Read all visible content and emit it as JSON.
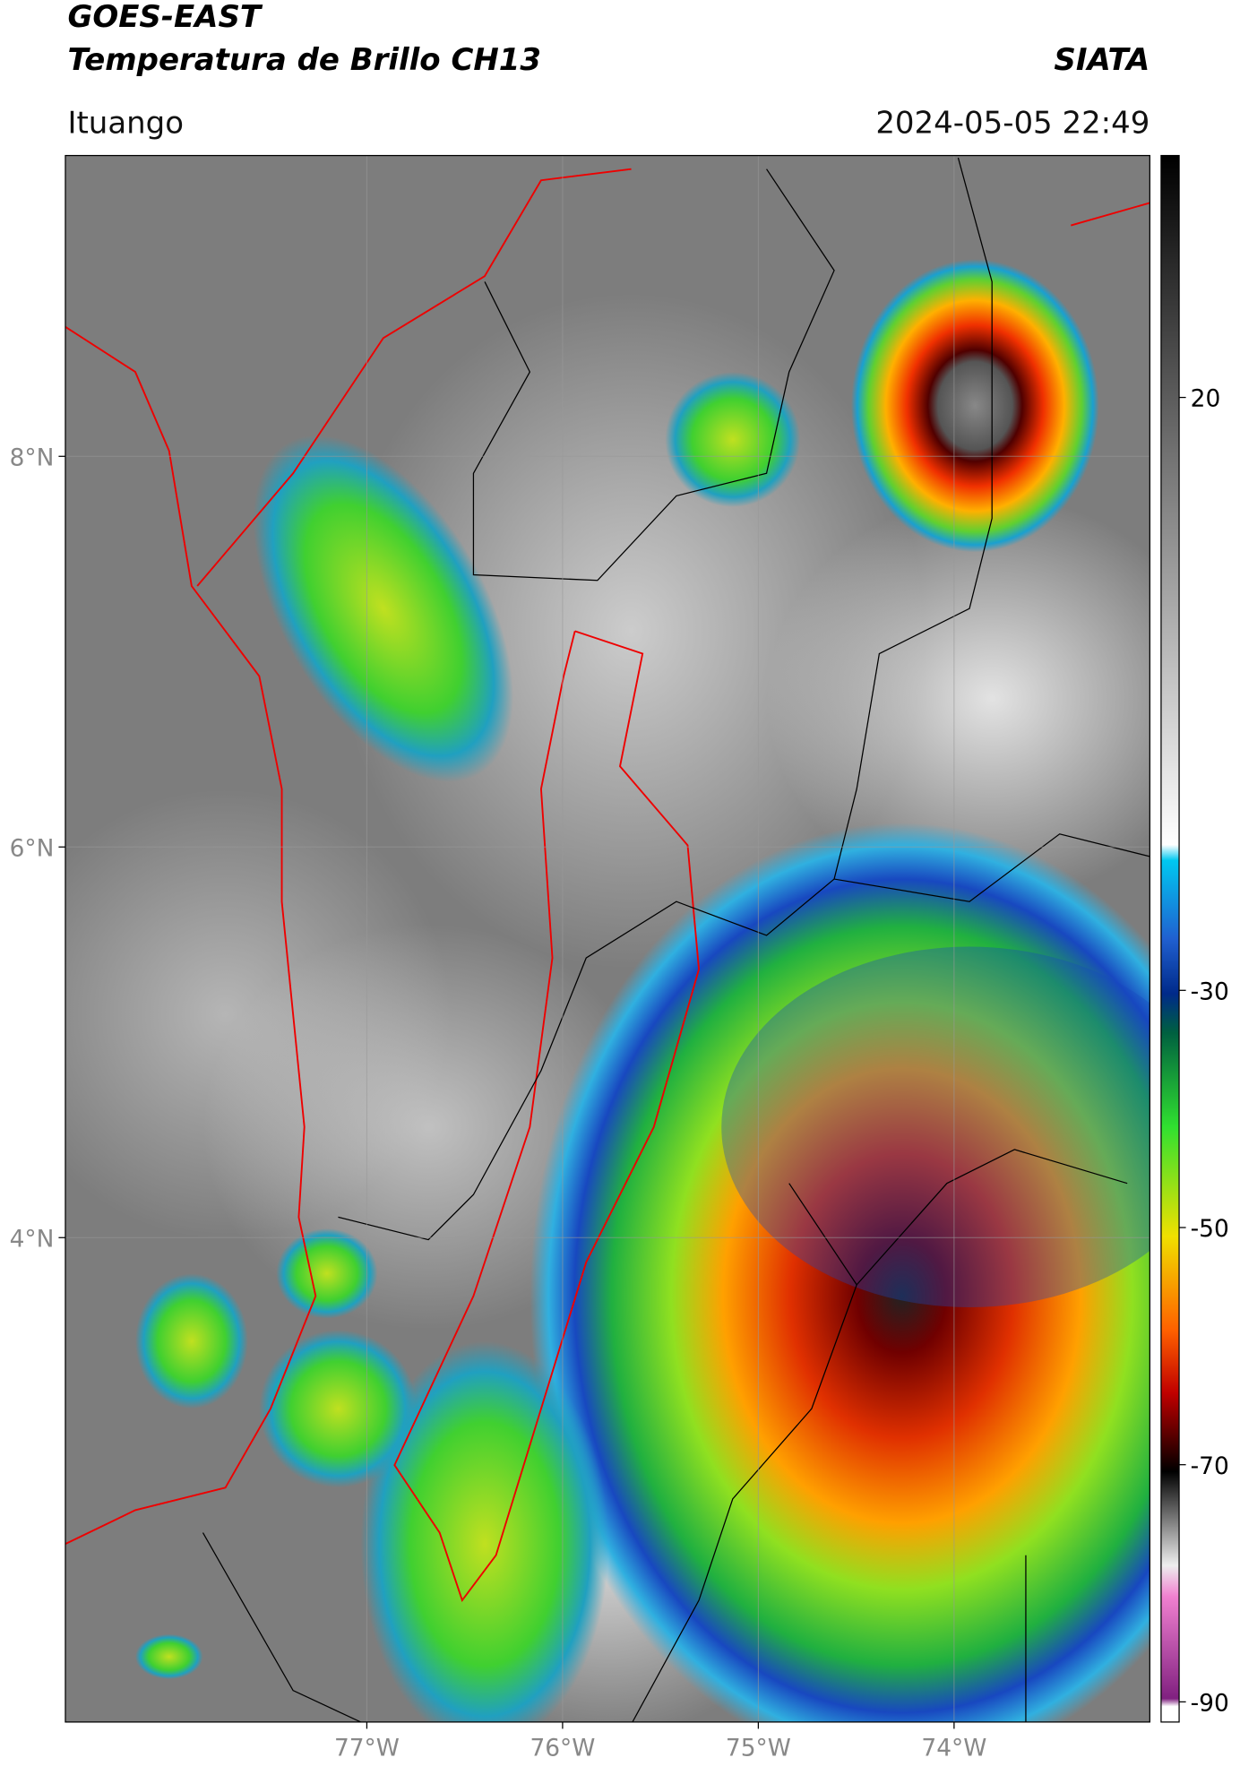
{
  "header": {
    "title": "GOES-EAST",
    "subtitle": "Temperatura de Brillo CH13",
    "source": "SIATA",
    "location": "Ituango",
    "datetime": "2024-05-05 22:49"
  },
  "map": {
    "lonlim": [
      -78.54,
      -73.0
    ],
    "latlim": [
      1.52,
      9.54
    ],
    "xticks": [
      {
        "value": -77,
        "label": "77°W"
      },
      {
        "value": -76,
        "label": "76°W"
      },
      {
        "value": -75,
        "label": "75°W"
      },
      {
        "value": -74,
        "label": "74°W"
      }
    ],
    "yticks": [
      {
        "value": 8,
        "label": "8°N"
      },
      {
        "value": 6,
        "label": "6°N"
      },
      {
        "value": 4,
        "label": "4°N"
      }
    ],
    "grid": true
  },
  "colorbar": {
    "lim": [
      -91.7,
      40.4
    ],
    "ticks": [
      20,
      -30,
      -50,
      -70,
      -90
    ]
  }
}
